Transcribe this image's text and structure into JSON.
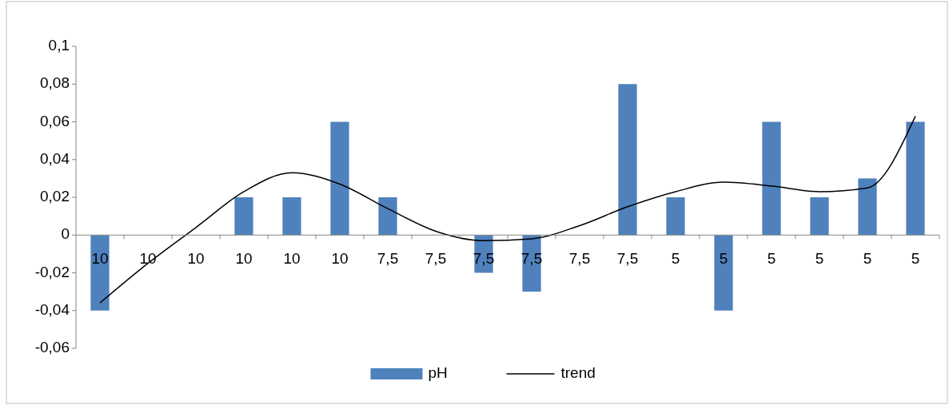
{
  "chart_data": {
    "type": "bar",
    "categories": [
      "10",
      "10",
      "10",
      "10",
      "10",
      "10",
      "7,5",
      "7,5",
      "7,5",
      "7,5",
      "7,5",
      "7,5",
      "5",
      "5",
      "5",
      "5",
      "5",
      "5"
    ],
    "series": [
      {
        "name": "pH",
        "color": "#4f81bd",
        "values": [
          -0.04,
          0,
          0,
          0.02,
          0.02,
          0.06,
          0.02,
          0,
          -0.02,
          -0.03,
          0,
          0.08,
          0.02,
          -0.04,
          0.06,
          0.02,
          0.03,
          0.06
        ]
      },
      {
        "name": "trend",
        "type": "line",
        "color": "#000000",
        "line_style": "solid",
        "values": [
          -0.036,
          -0.015,
          0.004,
          0.023,
          0.033,
          0.027,
          0.014,
          0.002,
          -0.003,
          -0.002,
          0.005,
          0.015,
          0.023,
          0.028,
          0.026,
          0.023,
          0.025,
          0.063
        ]
      }
    ],
    "ylim": [
      -0.06,
      0.1
    ],
    "yticks": [
      {
        "value": -0.06,
        "label": "-0,06"
      },
      {
        "value": -0.04,
        "label": "-0,04"
      },
      {
        "value": -0.02,
        "label": "-0,02"
      },
      {
        "value": 0,
        "label": "0"
      },
      {
        "value": 0.02,
        "label": "0,02"
      },
      {
        "value": 0.04,
        "label": "0,04"
      },
      {
        "value": 0.06,
        "label": "0,06"
      },
      {
        "value": 0.08,
        "label": "0,08"
      },
      {
        "value": 0.1,
        "label": "0,1"
      }
    ],
    "legend": "bottom"
  }
}
